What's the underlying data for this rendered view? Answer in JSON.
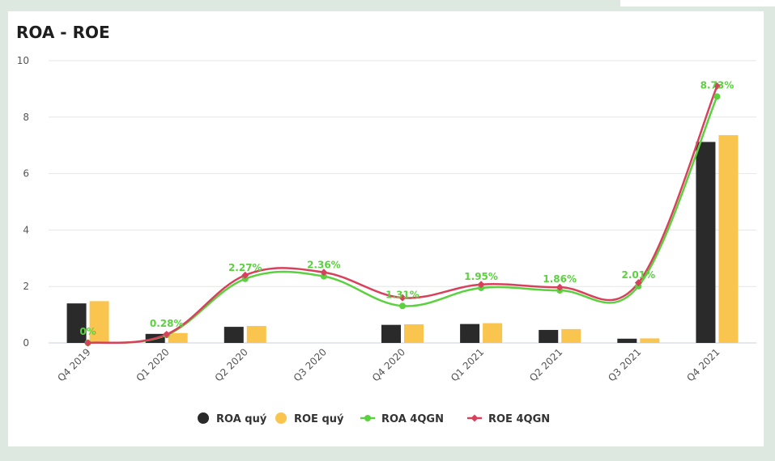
{
  "card": {
    "title": "ROA - ROE"
  },
  "colors": {
    "roa_q": "#2a2a2a",
    "roe_q": "#f9c54f",
    "roa_4q": "#5bd13f",
    "roe_4q": "#d8405c",
    "grid": "#e6e6e6"
  },
  "chart_data": {
    "type": "bar",
    "title": "ROA - ROE",
    "categories": [
      "Q4 2019",
      "Q1 2020",
      "Q2 2020",
      "Q3 2020",
      "Q4 2020",
      "Q1 2021",
      "Q2 2021",
      "Q3 2021",
      "Q4 2021"
    ],
    "ylim": [
      0,
      10
    ],
    "yticks": [
      0,
      2,
      4,
      6,
      8,
      10
    ],
    "xlabel": "",
    "ylabel": "",
    "grid": true,
    "legend_position": "bottom",
    "series": [
      {
        "name": "ROA quý",
        "kind": "bar",
        "values": [
          1.4,
          0.32,
          0.57,
          null,
          0.64,
          0.67,
          0.46,
          0.15,
          7.12
        ]
      },
      {
        "name": "ROE quý",
        "kind": "bar",
        "values": [
          1.48,
          0.35,
          0.6,
          null,
          0.66,
          0.7,
          0.49,
          0.16,
          7.36
        ]
      },
      {
        "name": "ROA 4QGN",
        "kind": "line",
        "values": [
          0,
          0.28,
          2.27,
          2.36,
          1.31,
          1.95,
          1.86,
          2.01,
          8.73
        ]
      },
      {
        "name": "ROE 4QGN",
        "kind": "line",
        "values": [
          0,
          0.3,
          2.4,
          2.5,
          1.6,
          2.07,
          1.97,
          2.13,
          9.1
        ]
      }
    ],
    "data_labels": [
      "0%",
      "0.28%",
      "2.27%",
      "2.36%",
      "1.31%",
      "1.95%",
      "1.86%",
      "2.01%",
      "8.73%"
    ]
  }
}
